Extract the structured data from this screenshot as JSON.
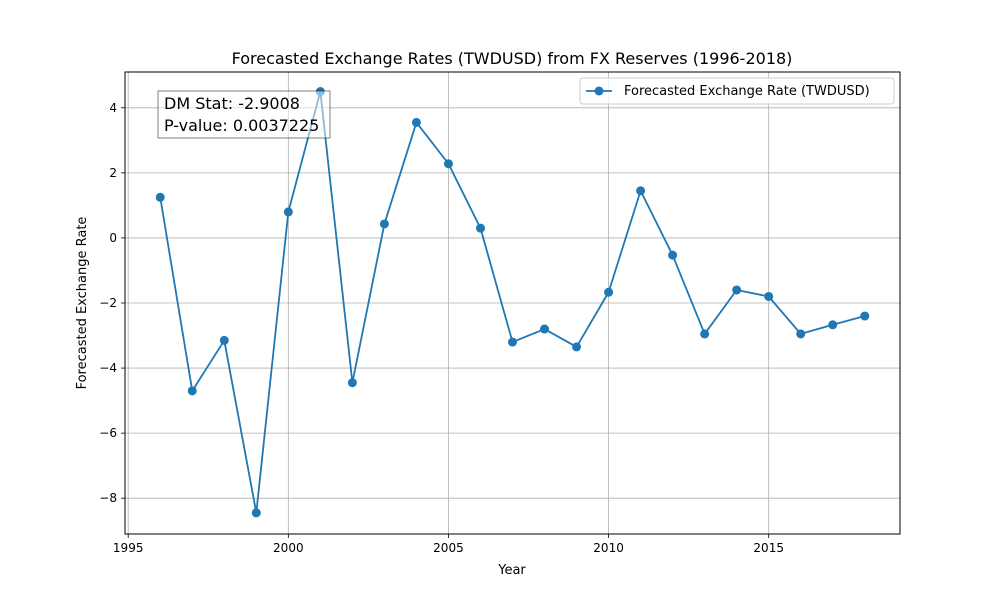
{
  "chart_data": {
    "type": "line",
    "title": "Forecasted Exchange Rates (TWDUSD) from FX Reserves (1996-2018)",
    "xlabel": "Year",
    "ylabel": "Forecasted Exchange Rate",
    "xlim": [
      1994.9,
      2019.1
    ],
    "ylim": [
      -9.1,
      5.1
    ],
    "x_ticks": [
      1995,
      2000,
      2005,
      2010,
      2015
    ],
    "y_ticks": [
      -8,
      -6,
      -4,
      -2,
      0,
      2,
      4
    ],
    "x_tick_labels": [
      "1995",
      "2000",
      "2005",
      "2010",
      "2015"
    ],
    "y_tick_labels": [
      "−8",
      "−6",
      "−4",
      "−2",
      "0",
      "2",
      "4"
    ],
    "grid": true,
    "legend_position": "top-right",
    "series": [
      {
        "name": "Forecasted Exchange Rate (TWDUSD)",
        "color": "#1f77b4",
        "x": [
          1996,
          1997,
          1998,
          1999,
          2000,
          2001,
          2002,
          2003,
          2004,
          2005,
          2006,
          2007,
          2008,
          2009,
          2010,
          2011,
          2012,
          2013,
          2014,
          2015,
          2016,
          2017,
          2018
        ],
        "y": [
          1.25,
          -4.7,
          -3.15,
          -8.45,
          0.8,
          4.5,
          -4.45,
          0.43,
          3.55,
          2.28,
          0.3,
          -3.2,
          -2.8,
          -3.35,
          -1.67,
          1.45,
          -0.53,
          -2.95,
          -1.6,
          -1.8,
          -2.95,
          -2.67,
          -2.4
        ]
      }
    ],
    "annotation": {
      "dm_stat": "DM Stat: -2.9008",
      "p_value": "P-value: 0.0037225"
    }
  }
}
